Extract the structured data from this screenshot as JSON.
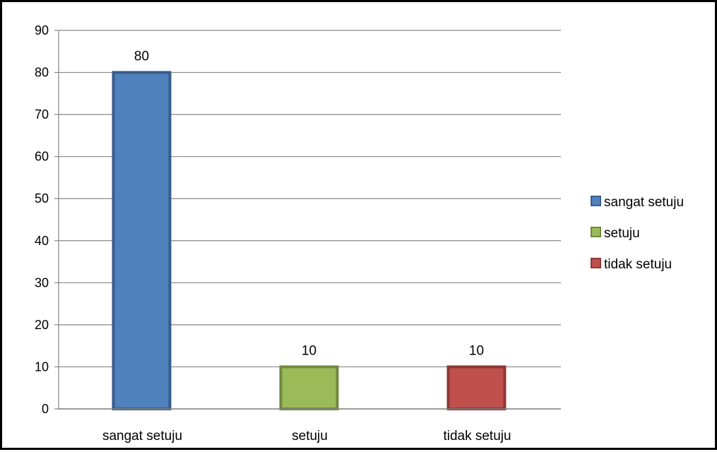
{
  "chart_data": {
    "type": "bar",
    "categories": [
      "sangat setuju",
      "setuju",
      "tidak setuju"
    ],
    "values": [
      80,
      10,
      10
    ],
    "colors": [
      "#4F81BD",
      "#9BBB59",
      "#C0504D"
    ],
    "border_colors": [
      "#385D8A",
      "#71893F",
      "#8C3836"
    ],
    "ylim": [
      0,
      90
    ],
    "yticks": [
      0,
      10,
      20,
      30,
      40,
      50,
      60,
      70,
      80,
      90
    ],
    "grid": true,
    "legend": {
      "placement": "right",
      "entries": [
        "sangat setuju",
        "setuju",
        "tidak setuju"
      ]
    },
    "data_labels": [
      "80",
      "10",
      "10"
    ]
  }
}
